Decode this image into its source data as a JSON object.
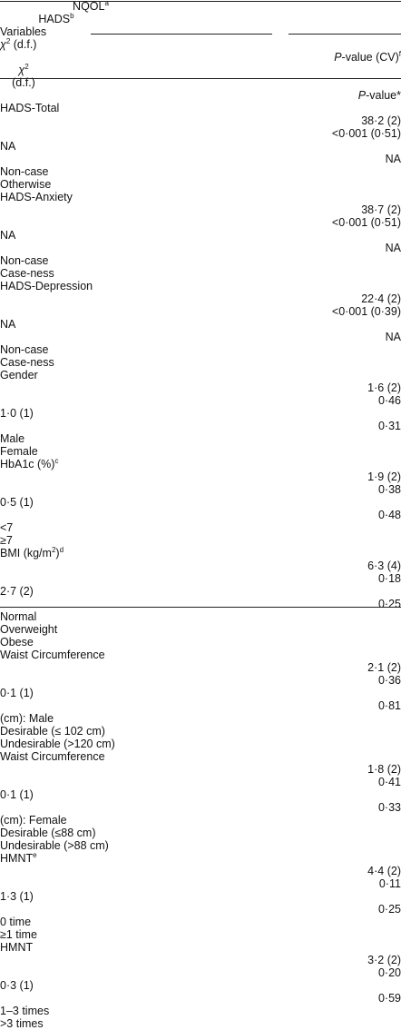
{
  "table": {
    "groups": [
      [
        {
          "text": "NQOL"
        },
        {
          "sup": "a"
        }
      ],
      [
        {
          "text": "HADS"
        },
        {
          "sup": "b"
        }
      ]
    ],
    "columns": [
      [
        {
          "text": "Variables"
        }
      ],
      [
        {
          "i": "χ"
        },
        {
          "sup": "2"
        },
        {
          "text": " (d.f.)"
        }
      ],
      [
        {
          "i": "P"
        },
        {
          "text": "-value (CV)"
        },
        {
          "sup": "f"
        }
      ],
      [
        {
          "i": "χ"
        },
        {
          "sup": "2"
        }
      ],
      [
        {
          "i": "P"
        },
        {
          "text": "-value*"
        }
      ]
    ],
    "column_note": "(d.f.)",
    "rows": [
      {
        "variable": [
          {
            "text": "HADS-Total"
          }
        ],
        "values": [
          "38·2 (2)",
          "<0·001 (0·51)",
          "NA",
          "NA"
        ],
        "sub": [
          "Non-case",
          "Otherwise"
        ]
      },
      {
        "variable": [
          {
            "text": "HADS-Anxiety"
          }
        ],
        "values": [
          "38·7 (2)",
          "<0·001 (0·51)",
          "NA",
          "NA"
        ],
        "sub": [
          "Non-case",
          "Case-ness"
        ]
      },
      {
        "variable": [
          {
            "text": "HADS-Depression"
          }
        ],
        "values": [
          "22·4 (2)",
          "<0·001 (0·39)",
          "NA",
          "NA"
        ],
        "sub": [
          "Non-case",
          "Case-ness"
        ]
      },
      {
        "variable": [
          {
            "text": "Gender"
          }
        ],
        "values": [
          "1·6 (2)",
          "0·46",
          "1·0 (1)",
          "0·31"
        ],
        "sub": [
          "Male",
          "Female"
        ]
      },
      {
        "variable": [
          {
            "text": "HbA1c (%)"
          },
          {
            "sup": "c"
          }
        ],
        "values": [
          "1·9 (2)",
          "0·38",
          "0·5 (1)",
          "0·48"
        ],
        "sub": [
          "<7",
          "≥7"
        ]
      },
      {
        "variable": [
          {
            "text": "BMI (kg/m"
          },
          {
            "sup": "2"
          },
          {
            "text": ")"
          },
          {
            "sup": "d"
          }
        ],
        "values": [
          "6·3 (4)",
          "0·18",
          "2·7 (2)",
          "0·25"
        ],
        "sub": [
          "Normal",
          "Overweight",
          "Obese"
        ]
      },
      {
        "variable": [
          {
            "text": "Waist Circumference"
          }
        ],
        "values": [
          "2·1 (2)",
          "0·36",
          "0·1 (1)",
          "0·81"
        ],
        "sub": [
          "(cm): Male",
          "Desirable (≤ 102 cm)",
          "Undesirable (>120 cm)"
        ]
      },
      {
        "variable": [
          {
            "text": "Waist Circumference"
          }
        ],
        "values": [
          "1·8 (2)",
          "0·41",
          "0·1 (1)",
          "0·33"
        ],
        "sub": [
          "(cm): Female",
          "Desirable (≤88 cm)",
          "Undesirable (>88 cm)"
        ]
      },
      {
        "variable": [
          {
            "text": "HMNT"
          },
          {
            "sup": "e"
          }
        ],
        "values": [
          "4·4 (2)",
          "0·11",
          "1·3 (1)",
          "0·25"
        ],
        "sub": [
          "0 time",
          "≥1 time"
        ]
      },
      {
        "variable": [
          {
            "text": "HMNT"
          }
        ],
        "values": [
          "3·2 (2)",
          "0·20",
          "0·3 (1)",
          "0·59"
        ],
        "sub": [
          "1–3 times",
          ">3 times"
        ]
      }
    ]
  }
}
